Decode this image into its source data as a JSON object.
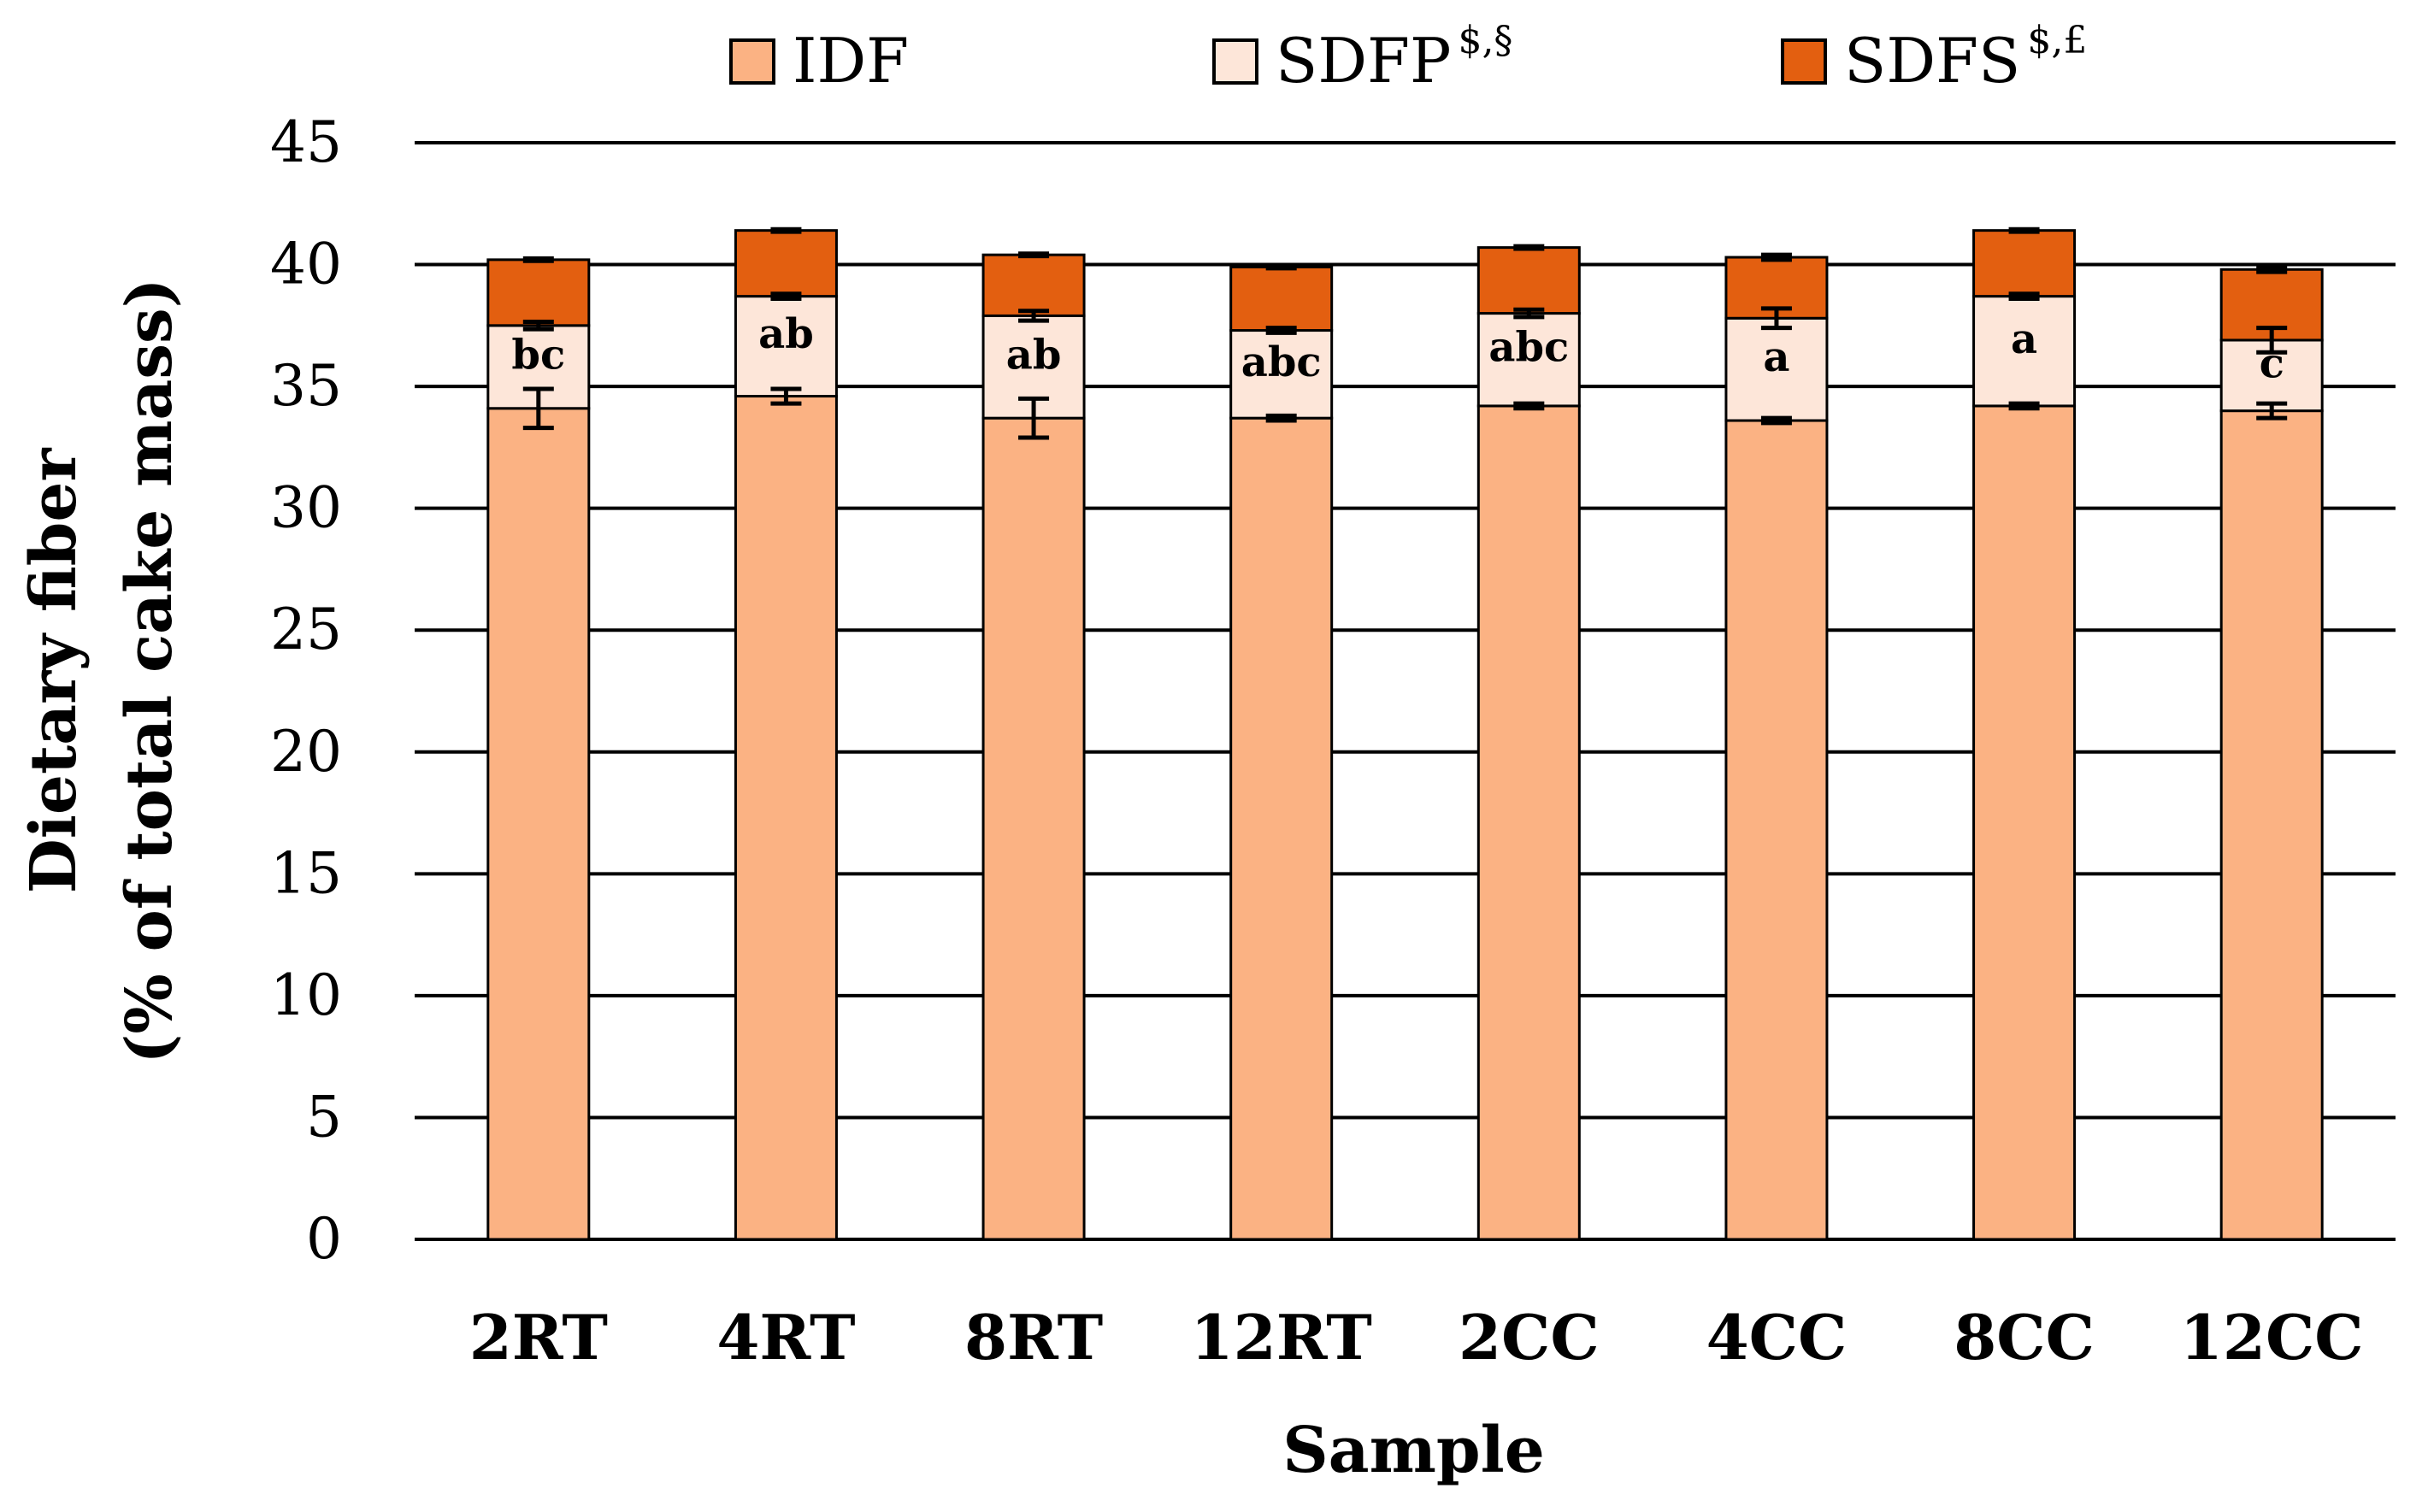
{
  "chart_data": {
    "type": "bar",
    "stacked": true,
    "title": "",
    "xlabel": "Sample",
    "ylabel_line1": "Dietary fiber",
    "ylabel_line2": "(% of total cake mass)",
    "ylim": [
      0,
      45
    ],
    "yticks": [
      0,
      5,
      10,
      15,
      20,
      25,
      30,
      35,
      40,
      45
    ],
    "grid": true,
    "legend_position": "top",
    "categories": [
      "2RT",
      "4RT",
      "8RT",
      "12RT",
      "2CC",
      "4CC",
      "8CC",
      "12CC"
    ],
    "series": [
      {
        "name": "IDF",
        "superscript": "",
        "color": "#FBB283",
        "values": [
          34.1,
          34.6,
          33.7,
          33.7,
          34.2,
          33.6,
          34.2,
          34.0
        ],
        "errors": [
          0.8,
          0.3,
          0.8,
          0.1,
          0.1,
          0.1,
          0.1,
          0.3
        ]
      },
      {
        "name": "SDFP",
        "superscript": "$,§",
        "color": "#FDE6D9",
        "values": [
          3.4,
          4.1,
          4.2,
          3.6,
          3.8,
          4.2,
          4.5,
          2.9
        ],
        "errors": [
          0.15,
          0.1,
          0.2,
          0.1,
          0.15,
          0.4,
          0.1,
          0.5
        ]
      },
      {
        "name": "SDFS",
        "superscript": "$,£",
        "color": "#E35F10",
        "values": [
          2.7,
          2.7,
          2.5,
          2.6,
          2.7,
          2.5,
          2.7,
          2.9
        ],
        "errors": [
          0.05,
          0.05,
          0.05,
          0.05,
          0.05,
          0.1,
          0.05,
          0.1
        ]
      }
    ],
    "significance_labels": [
      "bc",
      "ab",
      "ab",
      "abc",
      "abc",
      "a",
      "a",
      "c"
    ]
  }
}
